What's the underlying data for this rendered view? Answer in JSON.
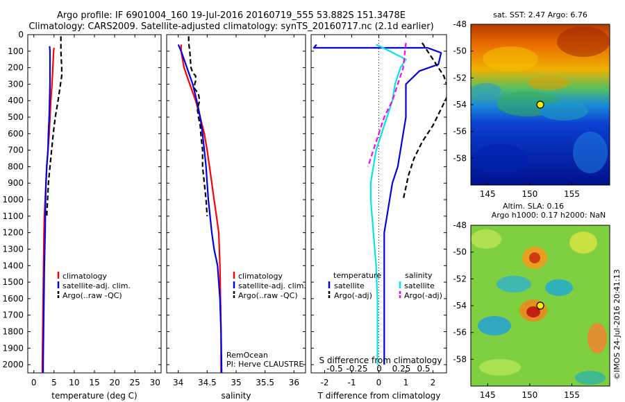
{
  "header": {
    "line1": "Argo profile: IF 6901004_160 19-Jul-2016 20160719_555 53.882S 151.3478E",
    "line2": "Climatology: CARS2009. Satellite-adjusted climatology: synTS_20160717.nc (2.1d earlier)"
  },
  "colors": {
    "climatology": "#ff0000",
    "satellite": "#0000e6",
    "argo": "#000000",
    "sal_satellite": "#00e6e6",
    "sal_argo": "#ff00ff"
  },
  "chart_data": [
    {
      "type": "line",
      "panel": "temperature",
      "xlabel": "temperature (deg C)",
      "ylabel": "",
      "xlim": [
        -1.5,
        31.5
      ],
      "ylim": [
        2050,
        0
      ],
      "xticks": [
        0,
        5,
        10,
        15,
        20,
        25,
        30
      ],
      "yticks": [
        0,
        100,
        200,
        300,
        400,
        500,
        600,
        700,
        800,
        900,
        1000,
        1100,
        1200,
        1300,
        1400,
        1500,
        1600,
        1700,
        1800,
        1900,
        2000
      ],
      "legend": [
        "climatology",
        "satellite-adj. clim.",
        "Argo(..raw -QC)"
      ],
      "series": [
        {
          "name": "climatology",
          "style": "solid",
          "color": "#ff0000",
          "x": [
            5.0,
            4.9,
            4.7,
            4.5,
            4.2,
            4.0,
            3.8,
            3.5,
            3.2,
            3.0,
            2.8,
            2.6,
            2.5,
            2.4,
            2.3,
            2.2,
            2.15,
            2.1,
            2.1
          ],
          "y": [
            80,
            100,
            200,
            300,
            400,
            500,
            600,
            700,
            800,
            900,
            1000,
            1100,
            1200,
            1400,
            1600,
            1800,
            1900,
            2000,
            2050
          ]
        },
        {
          "name": "satellite-adj. clim.",
          "style": "solid",
          "color": "#0000e6",
          "x": [
            3.9,
            4.0,
            4.0,
            4.0,
            3.9,
            3.8,
            3.6,
            3.5,
            3.2,
            3.0,
            2.9,
            2.8,
            2.6,
            2.5,
            2.4,
            2.35,
            2.3,
            2.3
          ],
          "y": [
            70,
            100,
            200,
            300,
            400,
            500,
            600,
            700,
            800,
            900,
            1000,
            1200,
            1400,
            1600,
            1800,
            1900,
            2000,
            2050
          ]
        },
        {
          "name": "Argo(..raw -QC)",
          "style": "dash",
          "color": "#000000",
          "x": [
            6.7,
            6.7,
            6.7,
            6.8,
            6.9,
            6.9,
            6.6,
            6.0,
            5.3,
            4.8,
            4.4,
            4.0,
            3.6,
            3.4,
            3.2
          ],
          "y": [
            10,
            50,
            100,
            150,
            200,
            250,
            300,
            400,
            500,
            600,
            700,
            800,
            900,
            1000,
            1100
          ]
        }
      ]
    },
    {
      "type": "line",
      "panel": "salinity",
      "xlabel": "salinity",
      "ylabel": "",
      "xlim": [
        33.8,
        36.2
      ],
      "ylim": [
        2050,
        0
      ],
      "xticks": [
        34,
        34.5,
        35,
        35.5,
        36
      ],
      "legend": [
        "climatology",
        "satellite-adj. clim.",
        "Argo(..raw -QC)"
      ],
      "annotation": [
        "RemOcean",
        "PI: Herve CLAUSTRE"
      ],
      "series": [
        {
          "name": "climatology",
          "style": "solid",
          "color": "#ff0000",
          "x": [
            34.05,
            34.05,
            34.1,
            34.2,
            34.3,
            34.38,
            34.45,
            34.5,
            34.54,
            34.58,
            34.62,
            34.66,
            34.7,
            34.72,
            34.73,
            34.74,
            34.74
          ],
          "y": [
            60,
            100,
            200,
            300,
            400,
            500,
            600,
            700,
            800,
            900,
            1000,
            1100,
            1200,
            1400,
            1600,
            1800,
            2050
          ]
        },
        {
          "name": "satellite-adj. clim.",
          "style": "solid",
          "color": "#0000e6",
          "x": [
            34.0,
            34.05,
            34.15,
            34.25,
            34.32,
            34.38,
            34.42,
            34.45,
            34.48,
            34.5,
            34.52,
            34.55,
            34.58,
            34.62,
            34.68,
            34.72,
            34.74,
            34.75
          ],
          "y": [
            60,
            100,
            200,
            300,
            400,
            500,
            600,
            700,
            800,
            900,
            1000,
            1100,
            1200,
            1300,
            1400,
            1600,
            1800,
            2050
          ]
        },
        {
          "name": "Argo(..raw -QC)",
          "style": "dash",
          "color": "#000000",
          "x": [
            34.18,
            34.18,
            34.2,
            34.22,
            34.25,
            34.3,
            34.3,
            34.27,
            34.35,
            34.37,
            34.33,
            34.35,
            34.38,
            34.39,
            34.42,
            34.42,
            34.45,
            34.48,
            34.5
          ],
          "y": [
            10,
            50,
            100,
            200,
            230,
            250,
            280,
            320,
            360,
            400,
            450,
            500,
            550,
            600,
            700,
            800,
            900,
            1000,
            1100
          ]
        }
      ]
    },
    {
      "type": "line",
      "panel": "difference",
      "xlabel": "T difference from climatology",
      "x2label": "S difference from climatology",
      "xlim": [
        -2.5,
        2.5
      ],
      "ylim": [
        2050,
        0
      ],
      "xticks": [
        -2,
        -1,
        0,
        1,
        2
      ],
      "x2ticks": [
        "-0.5",
        "-0.25",
        "0",
        "0.25",
        "0.5"
      ],
      "legend_headers": [
        "temperature",
        "salinity"
      ],
      "legend": [
        "satellite",
        "Argo(-adj)",
        "satellite",
        "Argo(-adj)"
      ],
      "series": [
        {
          "name": "temperature satellite",
          "style": "solid",
          "color": "#0000e6",
          "x": [
            -2.3,
            -2.4,
            -1.5,
            0.5,
            1.8,
            2.3,
            2.2,
            1.5,
            1.0,
            1.0,
            1.0,
            0.9,
            0.8,
            0.7,
            0.5,
            0.4,
            0.3,
            0.2,
            0.2,
            0.2
          ],
          "y": [
            60,
            80,
            80,
            80,
            80,
            110,
            180,
            220,
            300,
            400,
            500,
            600,
            700,
            800,
            900,
            1000,
            1100,
            1200,
            1500,
            2000
          ]
        },
        {
          "name": "temperature Argo(-adj)",
          "style": "dash",
          "color": "#000000",
          "x": [
            1.6,
            2.0,
            2.4,
            2.6,
            2.3,
            2.0,
            1.6,
            1.3,
            1.1,
            0.9
          ],
          "y": [
            50,
            150,
            250,
            350,
            450,
            550,
            650,
            750,
            850,
            1000
          ]
        },
        {
          "name": "salinity satellite",
          "style": "solid",
          "color": "#00e6e6",
          "x": [
            -0.1,
            0.4,
            1.0,
            0.8,
            0.6,
            0.5,
            0.3,
            0.1,
            -0.1,
            -0.2,
            -0.3,
            -0.3,
            -0.2,
            -0.1,
            -0.05,
            -0.05,
            -0.05
          ],
          "y": [
            60,
            100,
            150,
            200,
            300,
            400,
            500,
            600,
            700,
            800,
            900,
            1000,
            1200,
            1400,
            1600,
            1800,
            2000
          ]
        },
        {
          "name": "salinity Argo(-adj)",
          "style": "dash",
          "color": "#ff00ff",
          "x": [
            1.0,
            0.9,
            0.7,
            0.5,
            0.2,
            0.0,
            -0.2,
            -0.4
          ],
          "y": [
            50,
            200,
            300,
            400,
            500,
            600,
            700,
            800
          ]
        }
      ]
    },
    {
      "type": "heatmap",
      "panel": "map-sst",
      "title": "sat. SST: 2.47  Argo: 6.76",
      "xlim": [
        143,
        159.5
      ],
      "ylim": [
        -60,
        -48
      ],
      "xticks": [
        145,
        150,
        155
      ],
      "yticks": [
        -48,
        -50,
        -52,
        -54,
        -56,
        -58
      ],
      "marker": {
        "lon": 151.35,
        "lat": -53.88
      }
    },
    {
      "type": "heatmap",
      "panel": "map-sla",
      "title": "Altim. SLA: 0.16",
      "subtitle": "Argo h1000: 0.17 h2000: NaN",
      "xlim": [
        143,
        159.5
      ],
      "ylim": [
        -60,
        -48
      ],
      "xticks": [
        145,
        150,
        155
      ],
      "yticks": [
        -48,
        -50,
        -52,
        -54,
        -56,
        -58
      ],
      "marker": {
        "lon": 151.35,
        "lat": -53.88
      }
    }
  ],
  "credit": "©IMOS 24-Jul-2016 20:41:13"
}
